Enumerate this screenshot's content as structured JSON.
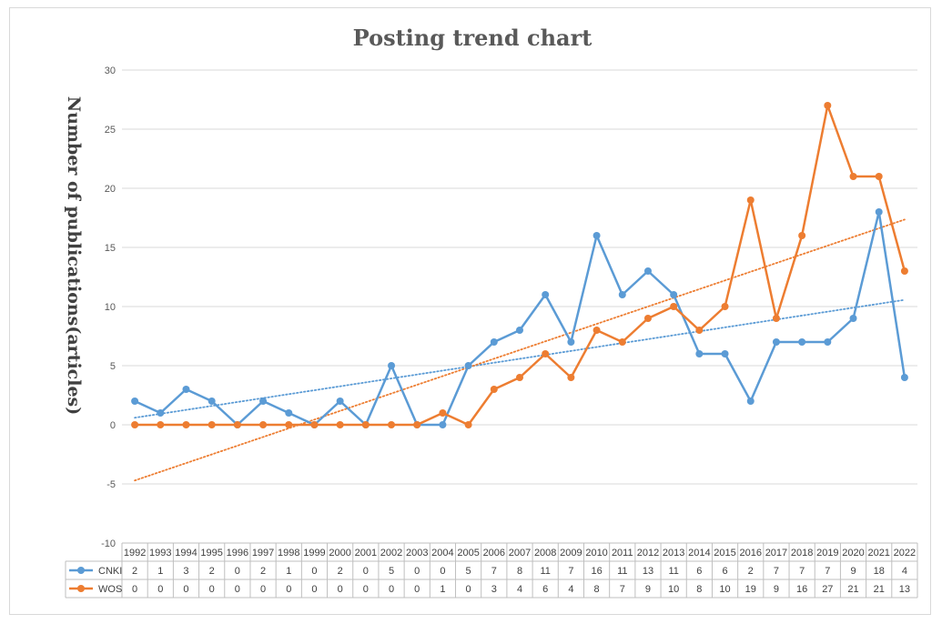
{
  "chart_data": {
    "type": "line",
    "title": "Posting trend chart",
    "xlabel": "",
    "ylabel": "Number of publications(articles)",
    "ylim": [
      -10,
      30
    ],
    "yticks": [
      -10,
      -5,
      0,
      5,
      10,
      15,
      20,
      25,
      30
    ],
    "grid": true,
    "legend": "data-table-left",
    "categories": [
      "1992",
      "1993",
      "1994",
      "1995",
      "1996",
      "1997",
      "1998",
      "1999",
      "2000",
      "2001",
      "2002",
      "2003",
      "2004",
      "2005",
      "2006",
      "2007",
      "2008",
      "2009",
      "2010",
      "2011",
      "2012",
      "2013",
      "2014",
      "2015",
      "2016",
      "2017",
      "2018",
      "2019",
      "2020",
      "2021",
      "2022"
    ],
    "series": [
      {
        "name": "CNKI",
        "color": "#5B9BD5",
        "values": [
          2,
          1,
          3,
          2,
          0,
          2,
          1,
          0,
          2,
          0,
          5,
          0,
          0,
          5,
          7,
          8,
          11,
          7,
          16,
          11,
          13,
          11,
          6,
          6,
          2,
          7,
          7,
          7,
          9,
          18,
          4
        ],
        "trendline": "linear"
      },
      {
        "name": "WOS",
        "color": "#ED7D31",
        "values": [
          0,
          0,
          0,
          0,
          0,
          0,
          0,
          0,
          0,
          0,
          0,
          0,
          1,
          0,
          3,
          4,
          6,
          4,
          8,
          7,
          9,
          10,
          8,
          10,
          19,
          9,
          16,
          27,
          21,
          21,
          13
        ],
        "trendline": "linear"
      }
    ]
  }
}
